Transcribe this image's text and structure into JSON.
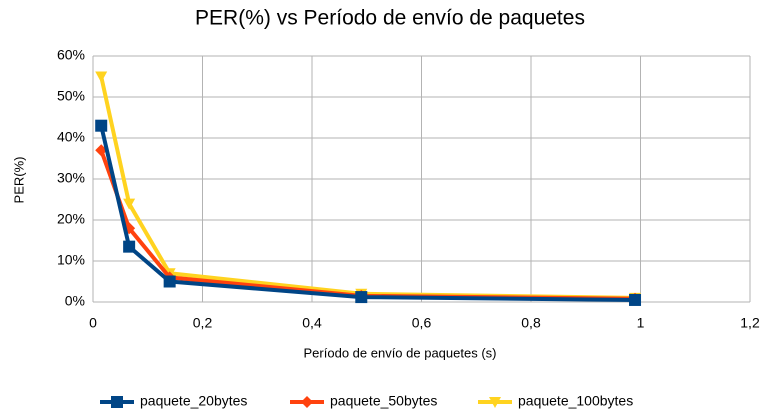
{
  "chart_data": {
    "type": "line",
    "title": "PER(%) vs Período de envío de paquetes",
    "x_label": "Período de envío de paquetes (s)",
    "y_label": "PER(%)",
    "x": [
      0.015,
      0.066,
      0.14,
      0.49,
      0.99
    ],
    "series": [
      {
        "name": "paquete_20bytes",
        "color": "#004586",
        "marker": "square",
        "values": [
          43,
          13.5,
          5,
          1.2,
          0.5
        ]
      },
      {
        "name": "paquete_50bytes",
        "color": "#ff420e",
        "marker": "diamond",
        "values": [
          37,
          18,
          6,
          1.5,
          0.8
        ]
      },
      {
        "name": "paquete_100bytes",
        "color": "#ffd320",
        "marker": "triangle-down",
        "values": [
          55,
          24,
          7,
          2,
          1
        ]
      }
    ],
    "xlim": [
      0,
      1.2
    ],
    "xticks": [
      0,
      {
        "value": 0.2,
        "label": "0,2"
      },
      {
        "value": 0.4,
        "label": "0,4"
      },
      {
        "value": 0.6,
        "label": "0,6"
      },
      {
        "value": 0.8,
        "label": "0,8"
      },
      1,
      {
        "value": 1.2,
        "label": "1,2"
      }
    ],
    "ylim": [
      0,
      60
    ],
    "yticks": [
      {
        "value": 0,
        "label": "0%"
      },
      {
        "value": 10,
        "label": "10%"
      },
      {
        "value": 20,
        "label": "20%"
      },
      {
        "value": 30,
        "label": "30%"
      },
      {
        "value": 40,
        "label": "40%"
      },
      {
        "value": 50,
        "label": "50%"
      },
      {
        "value": 60,
        "label": "60%"
      }
    ],
    "grid": true,
    "legend": "bottom"
  }
}
